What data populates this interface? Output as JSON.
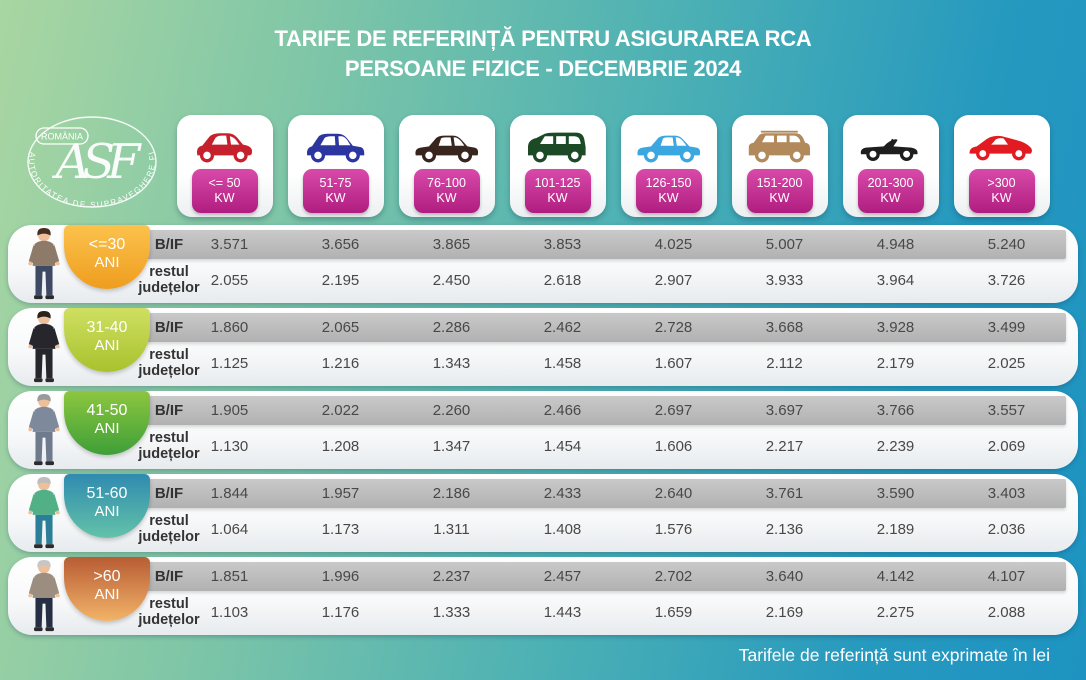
{
  "title": {
    "line1": "TARIFE DE REFERINȚĂ PENTRU ASIGURAREA RCA",
    "line2": "PERSOANE FIZICE - DECEMBRIE 2024"
  },
  "logo": {
    "country": "ROMÂNIA",
    "monogram": "ASF",
    "ring_text": "AUTORITATEA DE SUPRAVEGHERE FINANCIARĂ"
  },
  "power_categories": [
    {
      "label_line1": "<= 50",
      "label_line2": "KW",
      "car": "city-car",
      "color": "#c5202c"
    },
    {
      "label_line1": "51-75",
      "label_line2": "KW",
      "car": "hatchback",
      "color": "#2c35a0"
    },
    {
      "label_line1": "76-100",
      "label_line2": "KW",
      "car": "sedan",
      "color": "#38251e"
    },
    {
      "label_line1": "101-125",
      "label_line2": "KW",
      "car": "minivan",
      "color": "#1d4a26"
    },
    {
      "label_line1": "126-150",
      "label_line2": "KW",
      "car": "sedan",
      "color": "#3aa7e0"
    },
    {
      "label_line1": "151-200",
      "label_line2": "KW",
      "car": "suv",
      "color": "#b1895a"
    },
    {
      "label_line1": "201-300",
      "label_line2": "KW",
      "car": "convertible",
      "color": "#1e1e1e"
    },
    {
      "label_line1": ">300",
      "label_line2": "KW",
      "car": "sports-car",
      "color": "#e21a21"
    }
  ],
  "row_labels": {
    "bif": "B/IF",
    "rest_line1": "restul",
    "rest_line2": "județelor"
  },
  "age_groups": [
    {
      "age_line1": "<=30",
      "age_line2": "ANI",
      "badge_from": "#fbc24d",
      "badge_to": "#ef9d1e",
      "bif": [
        "3.571",
        "3.656",
        "3.865",
        "3.853",
        "4.025",
        "5.007",
        "4.948",
        "5.240"
      ],
      "rest": [
        "2.055",
        "2.195",
        "2.450",
        "2.618",
        "2.907",
        "3.933",
        "3.964",
        "3.726"
      ]
    },
    {
      "age_line1": "31-40",
      "age_line2": "ANI",
      "badge_from": "#cfdf62",
      "badge_to": "#a8c22d",
      "bif": [
        "1.860",
        "2.065",
        "2.286",
        "2.462",
        "2.728",
        "3.668",
        "3.928",
        "3.499"
      ],
      "rest": [
        "1.125",
        "1.216",
        "1.343",
        "1.458",
        "1.607",
        "2.112",
        "2.179",
        "2.025"
      ]
    },
    {
      "age_line1": "41-50",
      "age_line2": "ANI",
      "badge_from": "#8dc63f",
      "badge_to": "#3e9f38",
      "bif": [
        "1.905",
        "2.022",
        "2.260",
        "2.466",
        "2.697",
        "3.697",
        "3.766",
        "3.557"
      ],
      "rest": [
        "1.130",
        "1.208",
        "1.347",
        "1.454",
        "1.606",
        "2.217",
        "2.239",
        "2.069"
      ]
    },
    {
      "age_line1": "51-60",
      "age_line2": "ANI",
      "badge_from": "#2f8bb0",
      "badge_to": "#63c2a8",
      "bif": [
        "1.844",
        "1.957",
        "2.186",
        "2.433",
        "2.640",
        "3.761",
        "3.590",
        "3.403"
      ],
      "rest": [
        "1.064",
        "1.173",
        "1.311",
        "1.408",
        "1.576",
        "2.136",
        "2.189",
        "2.036"
      ]
    },
    {
      "age_line1": ">60",
      "age_line2": "ANI",
      "badge_from": "#b85c34",
      "badge_to": "#f2b368",
      "bif": [
        "1.851",
        "1.996",
        "2.237",
        "2.457",
        "2.702",
        "3.640",
        "4.142",
        "4.107"
      ],
      "rest": [
        "1.103",
        "1.176",
        "1.333",
        "1.443",
        "1.659",
        "2.169",
        "2.275",
        "2.088"
      ]
    }
  ],
  "footer": {
    "note": "Tarifele de referință sunt exprimate în lei"
  }
}
